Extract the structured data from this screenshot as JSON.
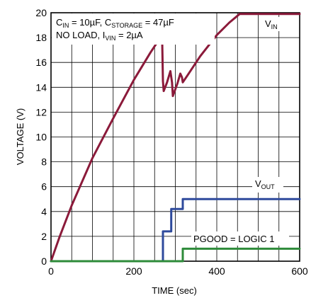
{
  "chart_data": {
    "type": "line",
    "xlabel": "TIME (sec)",
    "ylabel": "VOLTAGE (V)",
    "xlim": [
      0,
      600
    ],
    "ylim": [
      0,
      20
    ],
    "x_ticks": [
      0,
      200,
      400,
      600
    ],
    "y_ticks": [
      0,
      2,
      4,
      6,
      8,
      10,
      12,
      14,
      16,
      18,
      20
    ],
    "grid": true,
    "annotations": {
      "conditions_line1": {
        "c_in": "C",
        "c_in_sub": "IN",
        "c_in_value": " = 10µF, ",
        "c_storage": "C",
        "c_storage_sub": "STORAGE",
        "c_storage_value": " = 47µF"
      },
      "conditions_line2": {
        "text": "NO LOAD, I",
        "sub": "VIN",
        "value": " = 2µA"
      },
      "vin_label": {
        "main": "V",
        "sub": "IN"
      },
      "vout_label": {
        "main": "V",
        "sub": "OUT"
      },
      "pgood_label": "PGOOD = LOGIC 1"
    },
    "series": [
      {
        "color": "#8b1a3a",
        "points": [
          [
            0,
            0
          ],
          [
            20,
            1.9
          ],
          [
            50,
            4.5
          ],
          [
            100,
            8.3
          ],
          [
            150,
            11.5
          ],
          [
            200,
            14.6
          ],
          [
            240,
            16.8
          ],
          [
            268,
            18.2
          ],
          [
            270,
            14.5
          ],
          [
            272,
            13.7
          ],
          [
            280,
            14.4
          ],
          [
            288,
            15.3
          ],
          [
            292,
            14.4
          ],
          [
            294,
            13.3
          ],
          [
            305,
            14.3
          ],
          [
            312,
            15.1
          ],
          [
            316,
            14.8
          ],
          [
            318,
            14.4
          ],
          [
            330,
            15.0
          ],
          [
            360,
            16.5
          ],
          [
            400,
            18.2
          ],
          [
            430,
            19.2
          ],
          [
            455,
            19.9
          ],
          [
            600,
            19.9
          ]
        ]
      },
      {
        "color": "#2e4a9c",
        "points": [
          [
            0,
            0
          ],
          [
            270,
            0
          ],
          [
            270,
            2.4
          ],
          [
            290,
            2.4
          ],
          [
            290,
            4.2
          ],
          [
            318,
            4.2
          ],
          [
            318,
            5.0
          ],
          [
            600,
            5.0
          ]
        ]
      },
      {
        "color": "#2e8b3a",
        "points": [
          [
            0,
            0
          ],
          [
            318,
            0
          ],
          [
            318,
            1.0
          ],
          [
            600,
            1.0
          ]
        ]
      }
    ]
  }
}
